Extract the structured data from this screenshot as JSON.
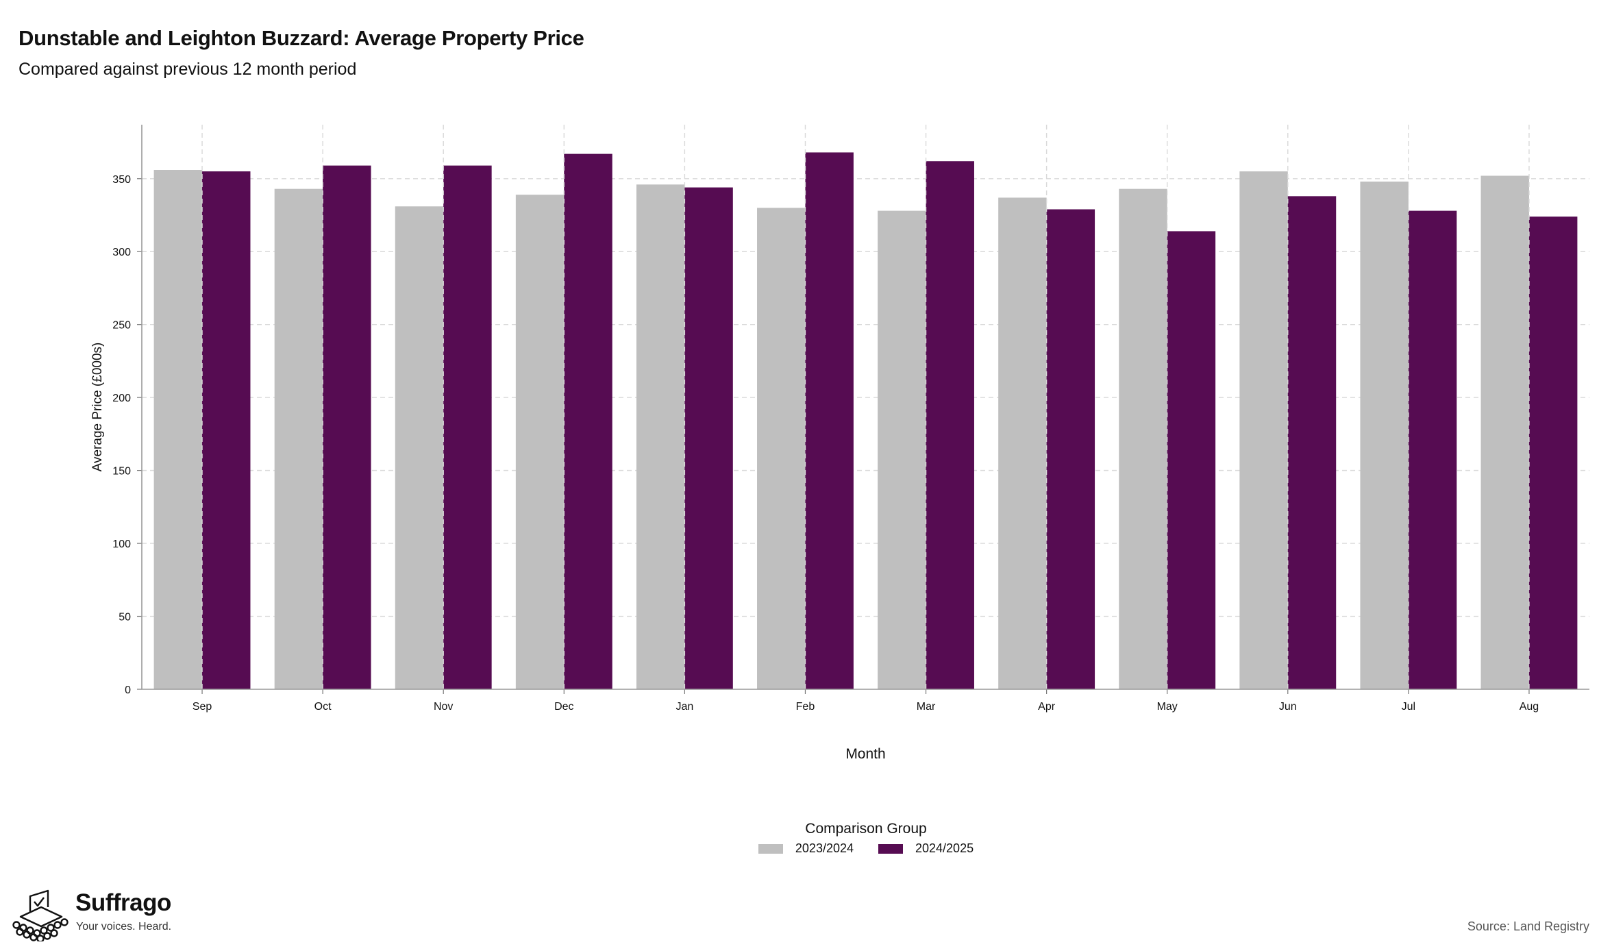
{
  "header": {
    "title": "Dunstable and Leighton Buzzard: Average Property Price",
    "subtitle": "Compared against previous 12 month period"
  },
  "chart_data": {
    "type": "bar",
    "categories": [
      "Sep",
      "Oct",
      "Nov",
      "Dec",
      "Jan",
      "Feb",
      "Mar",
      "Apr",
      "May",
      "Jun",
      "Jul",
      "Aug"
    ],
    "series": [
      {
        "name": "2023/2024",
        "color": "#bfbfbf",
        "values": [
          356,
          343,
          331,
          339,
          346,
          330,
          328,
          337,
          343,
          355,
          348,
          352
        ]
      },
      {
        "name": "2024/2025",
        "color": "#560c52",
        "values": [
          355,
          359,
          359,
          367,
          344,
          368,
          362,
          329,
          314,
          338,
          328,
          324
        ]
      }
    ],
    "xlabel": "Month",
    "ylabel": "Average Price (£000s)",
    "ylim": [
      0,
      387
    ],
    "yticks": [
      0,
      50,
      100,
      150,
      200,
      250,
      300,
      350
    ],
    "grid": true,
    "legend_title": "Comparison Group",
    "legend_position": "bottom-center"
  },
  "footer": {
    "brand_name": "Suffrago",
    "brand_tagline": "Your voices. Heard.",
    "logo_icon": "ballot-box-crowd-icon",
    "source": "Source: Land Registry"
  }
}
